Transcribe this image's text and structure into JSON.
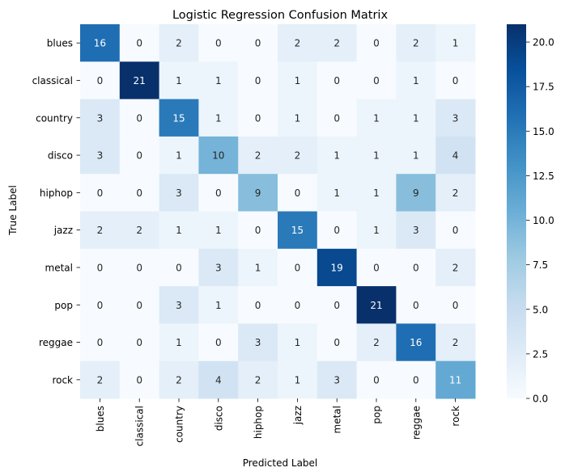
{
  "chart_data": {
    "type": "heatmap",
    "title": "Logistic Regression Confusion Matrix",
    "xlabel": "Predicted Label",
    "ylabel": "True Label",
    "x_categories": [
      "blues",
      "classical",
      "country",
      "disco",
      "hiphop",
      "jazz",
      "metal",
      "pop",
      "reggae",
      "rock"
    ],
    "y_categories": [
      "blues",
      "classical",
      "country",
      "disco",
      "hiphop",
      "jazz",
      "metal",
      "pop",
      "reggae",
      "rock"
    ],
    "matrix": [
      [
        16,
        0,
        2,
        0,
        0,
        2,
        2,
        0,
        2,
        1
      ],
      [
        0,
        21,
        1,
        1,
        0,
        1,
        0,
        0,
        1,
        0
      ],
      [
        3,
        0,
        15,
        1,
        0,
        1,
        0,
        1,
        1,
        3
      ],
      [
        3,
        0,
        1,
        10,
        2,
        2,
        1,
        1,
        1,
        4
      ],
      [
        0,
        0,
        3,
        0,
        9,
        0,
        1,
        1,
        9,
        2
      ],
      [
        2,
        2,
        1,
        1,
        0,
        15,
        0,
        1,
        3,
        0
      ],
      [
        0,
        0,
        0,
        3,
        1,
        0,
        19,
        0,
        0,
        2
      ],
      [
        0,
        0,
        3,
        1,
        0,
        0,
        0,
        21,
        0,
        0
      ],
      [
        0,
        0,
        1,
        0,
        3,
        1,
        0,
        2,
        16,
        2
      ],
      [
        2,
        0,
        2,
        4,
        2,
        1,
        3,
        0,
        0,
        11
      ]
    ],
    "colormap": "Blues",
    "colorbar": {
      "min": 0,
      "max": 21,
      "ticks": [
        0.0,
        2.5,
        5.0,
        7.5,
        10.0,
        12.5,
        15.0,
        17.5,
        20.0
      ],
      "tick_labels": [
        "0.0",
        "2.5",
        "5.0",
        "7.5",
        "10.0",
        "12.5",
        "15.0",
        "17.5",
        "20.0"
      ]
    },
    "grid": false,
    "annotated": true
  }
}
